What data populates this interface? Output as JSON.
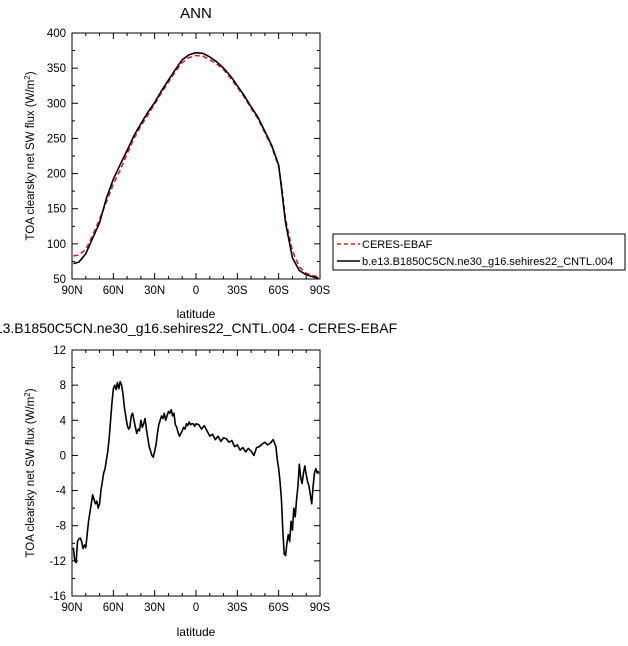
{
  "chart_data": [
    {
      "type": "line",
      "title": "ANN",
      "xlabel": "latitude",
      "ylabel_main": "TOA clearsky net SW flux (W/m",
      "ylabel_sup": "2",
      "ylabel_tail": ")",
      "xlim": [
        90,
        -90
      ],
      "ylim": [
        50,
        400
      ],
      "xticks": [
        90,
        60,
        30,
        0,
        -30,
        -60,
        -90
      ],
      "xtick_labels": [
        "90N",
        "60N",
        "30N",
        "0",
        "30S",
        "60S",
        "90S"
      ],
      "yticks": [
        50,
        100,
        150,
        200,
        250,
        300,
        350,
        400
      ],
      "ytick_labels": [
        "50",
        "100",
        "150",
        "200",
        "250",
        "300",
        "350",
        "400"
      ],
      "legend_position": "right",
      "series": [
        {
          "name": "CERES-EBAF",
          "color": "#e41a1c",
          "dash": "dashed",
          "x": [
            89,
            85,
            80,
            75,
            70,
            65,
            60,
            55,
            50,
            45,
            40,
            35,
            30,
            25,
            20,
            15,
            10,
            5,
            0,
            -5,
            -10,
            -15,
            -20,
            -25,
            -30,
            -35,
            -40,
            -45,
            -50,
            -55,
            -60,
            -62,
            -65,
            -70,
            -75,
            -80,
            -85,
            -89
          ],
          "y": [
            83,
            84,
            92,
            112,
            135,
            160,
            185,
            205,
            228,
            250,
            268,
            283,
            299,
            315,
            330,
            345,
            358,
            365,
            368,
            367,
            362,
            356,
            348,
            336,
            323,
            309,
            293,
            278,
            258,
            238,
            210,
            185,
            135,
            90,
            67,
            58,
            55,
            53
          ]
        },
        {
          "name": "b.e13.B1850C5CN.ne30_g16.sehires22_CNTL.004",
          "color": "#000000",
          "dash": "solid",
          "x": [
            89,
            85,
            80,
            75,
            70,
            65,
            60,
            55,
            50,
            45,
            40,
            35,
            30,
            25,
            20,
            15,
            10,
            5,
            0,
            -5,
            -10,
            -15,
            -20,
            -25,
            -30,
            -35,
            -40,
            -45,
            -50,
            -55,
            -60,
            -62,
            -65,
            -70,
            -75,
            -80,
            -85,
            -89
          ],
          "y": [
            72,
            74,
            86,
            108,
            130,
            165,
            192,
            213,
            233,
            254,
            271,
            287,
            301,
            318,
            333,
            348,
            362,
            369,
            372,
            371,
            366,
            359,
            350,
            339,
            325,
            311,
            295,
            280,
            260,
            240,
            212,
            180,
            130,
            80,
            62,
            56,
            53,
            51
          ]
        }
      ]
    },
    {
      "type": "line",
      "title": "13.B1850C5CN.ne30_g16.sehires22_CNTL.004 - CERES-EBAF",
      "xlabel": "latitude",
      "ylabel_main": "TOA clearsky net SW flux (W/m",
      "ylabel_sup": "2",
      "ylabel_tail": ")",
      "xlim": [
        90,
        -90
      ],
      "ylim": [
        -16,
        12
      ],
      "xticks": [
        90,
        60,
        30,
        0,
        -30,
        -60,
        -90
      ],
      "xtick_labels": [
        "90N",
        "60N",
        "30N",
        "0",
        "30S",
        "60S",
        "90S"
      ],
      "yticks": [
        -16,
        -12,
        -8,
        -4,
        0,
        4,
        8,
        12
      ],
      "ytick_labels": [
        "-16",
        "-12",
        "-8",
        "-4",
        "0",
        "4",
        "8",
        "12"
      ],
      "series": [
        {
          "color": "#000000",
          "dash": "solid",
          "x": [
            89,
            88,
            87,
            86,
            85,
            84,
            83,
            82,
            81,
            80,
            79,
            78,
            77,
            76,
            75,
            74,
            73,
            72,
            71,
            70,
            69,
            68,
            67,
            66,
            65,
            64,
            63,
            62,
            61,
            60,
            59,
            58,
            57,
            56,
            55,
            54,
            53,
            52,
            51,
            50,
            49,
            48,
            47,
            46,
            45,
            44,
            43,
            42,
            41,
            40,
            39,
            38,
            37,
            36,
            35,
            34,
            33,
            32,
            31,
            30,
            29,
            28,
            27,
            26,
            25,
            24,
            23,
            22,
            21,
            20,
            19,
            18,
            17,
            16,
            15,
            14,
            13,
            12,
            11,
            10,
            9,
            8,
            7,
            6,
            5,
            4,
            3,
            2,
            1,
            0,
            -2,
            -4,
            -6,
            -8,
            -10,
            -12,
            -14,
            -16,
            -18,
            -20,
            -22,
            -24,
            -26,
            -28,
            -30,
            -32,
            -34,
            -36,
            -38,
            -40,
            -42,
            -44,
            -46,
            -48,
            -50,
            -52,
            -54,
            -56,
            -58,
            -59,
            -60,
            -61,
            -62,
            -63,
            -64,
            -65,
            -66,
            -67,
            -68,
            -69,
            -70,
            -71,
            -72,
            -73,
            -74,
            -75,
            -76,
            -77,
            -78,
            -79,
            -80,
            -81,
            -82,
            -83,
            -84,
            -85,
            -86,
            -87,
            -88,
            -89
          ],
          "y": [
            -10.5,
            -12.0,
            -12.2,
            -9.8,
            -9.5,
            -9.4,
            -9.8,
            -10.6,
            -10.2,
            -10.5,
            -9.0,
            -7.5,
            -6.5,
            -5.5,
            -4.5,
            -5.0,
            -5.5,
            -5.2,
            -6.0,
            -5.5,
            -4.0,
            -3.0,
            -2.0,
            -1.5,
            -0.5,
            0.5,
            2.0,
            4.0,
            6.0,
            7.6,
            8.0,
            7.5,
            8.3,
            7.6,
            8.4,
            8.0,
            7.0,
            5.5,
            4.5,
            3.5,
            3.0,
            3.2,
            4.5,
            4.8,
            4.0,
            3.2,
            2.5,
            3.0,
            2.8,
            4.0,
            3.2,
            3.6,
            4.2,
            3.0,
            2.0,
            1.0,
            0.5,
            0.0,
            -0.2,
            0.5,
            1.2,
            2.5,
            3.5,
            4.0,
            4.5,
            4.2,
            4.8,
            4.0,
            4.5,
            5.0,
            4.8,
            5.2,
            4.5,
            4.8,
            3.5,
            3.2,
            2.6,
            2.2,
            2.5,
            2.8,
            3.2,
            3.0,
            3.6,
            3.4,
            3.8,
            3.5,
            3.6,
            3.6,
            3.3,
            3.6,
            3.5,
            3.0,
            3.4,
            2.8,
            2.2,
            2.4,
            1.8,
            2.2,
            1.6,
            2.0,
            1.9,
            1.5,
            1.7,
            1.0,
            1.2,
            0.6,
            0.9,
            0.4,
            0.8,
            0.5,
            0.0,
            0.9,
            1.0,
            1.3,
            1.5,
            1.2,
            1.4,
            1.8,
            1.0,
            -0.5,
            -1.5,
            -3.0,
            -5.0,
            -8.5,
            -11.2,
            -11.4,
            -10.0,
            -9.0,
            -9.8,
            -7.5,
            -8.5,
            -6.0,
            -7.0,
            -5.0,
            -3.5,
            -1.0,
            -2.5,
            -3.2,
            -2.0,
            -1.2,
            -2.2,
            -3.0,
            -3.5,
            -4.5,
            -5.5,
            -3.5,
            -2.0,
            -1.5,
            -2.0,
            -1.8
          ]
        }
      ]
    }
  ],
  "legend": {
    "items": [
      {
        "label": "CERES-EBAF",
        "color": "#e41a1c",
        "dash": "dashed"
      },
      {
        "label": "b.e13.B1850C5CN.ne30_g16.sehires22_CNTL.004",
        "color": "#000000",
        "dash": "solid"
      }
    ]
  }
}
